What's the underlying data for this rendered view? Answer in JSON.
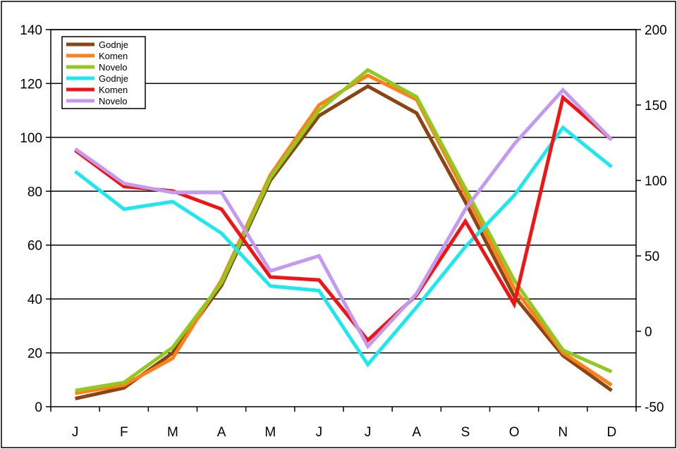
{
  "colors": {
    "background": "#ffffff",
    "grid": "#000000",
    "axis": "#000000"
  },
  "chart_data": {
    "type": "line",
    "categories": [
      "J",
      "F",
      "M",
      "A",
      "M",
      "J",
      "J",
      "A",
      "S",
      "O",
      "N",
      "D"
    ],
    "y_left": {
      "ylim": [
        0,
        140
      ],
      "ticks": [
        0,
        20,
        40,
        60,
        80,
        100,
        120,
        140
      ]
    },
    "y_right": {
      "ylim": [
        -50,
        200
      ],
      "ticks": [
        -50,
        0,
        50,
        100,
        150,
        200
      ]
    },
    "grid": true,
    "legend_position": "top-left",
    "series": [
      {
        "name": "Godnje",
        "axis": "left",
        "color": "#8B4513",
        "values": [
          3,
          7,
          20,
          45,
          84,
          108,
          119,
          109,
          76,
          41,
          19,
          6
        ]
      },
      {
        "name": "Komen",
        "axis": "left",
        "color": "#FF7F1A",
        "values": [
          5,
          8,
          18,
          47,
          86,
          112,
          123,
          114,
          79,
          44,
          20,
          8
        ]
      },
      {
        "name": "Novelo",
        "axis": "left",
        "color": "#92C91E",
        "values": [
          6,
          9,
          22,
          46,
          85,
          110,
          125,
          115,
          81,
          47,
          21,
          13
        ]
      },
      {
        "name": "Godnje",
        "axis": "right",
        "color": "#1EE8EE",
        "values": [
          106,
          81,
          86,
          65,
          30,
          27,
          -22,
          16,
          56,
          90,
          135,
          109
        ]
      },
      {
        "name": "Komen",
        "axis": "right",
        "color": "#F01414",
        "values": [
          120,
          96,
          93,
          81,
          36,
          34,
          -6,
          24,
          73,
          18,
          155,
          127
        ]
      },
      {
        "name": "Novelo",
        "axis": "right",
        "color": "#C49AF0",
        "values": [
          121,
          98,
          92,
          92,
          40,
          50,
          -10,
          25,
          81,
          124,
          160,
          127
        ]
      }
    ]
  }
}
